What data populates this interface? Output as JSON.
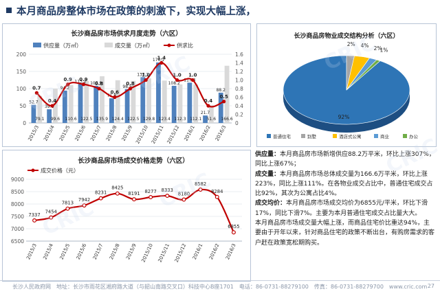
{
  "header": {
    "title": "本月商品房整体市场在政策的刺激下，实现大幅上涨，"
  },
  "colors": {
    "navy": "#1f3a63",
    "supply": "#4f81bd",
    "sales": "#d9d9d9",
    "ratio": "#c00000",
    "price": "#c00000",
    "pie_main": "#2e75b6"
  },
  "analysis": {
    "p1_k": "供应量：",
    "p1": "本月商品房市场新增供应88.2万平米，环比上涨307%，同比上涨67%；",
    "p2_k": "成交量：",
    "p2": "本月商品房市场总体成交量为166.6万平米，环比上涨223%，同比上涨111%。在各物业成交占比中，普通住宅成交占比92%，其次为公寓占比4%。",
    "p3_k": "成交均价：",
    "p3": "本月商品房市场成交均价为6855元/平米，环比下滑17%，同比下滑7%。主要为本月普通住宅成交占比量大大。",
    "p4": "本月商品房市场成交量大幅上涨，而商品住宅价比重达94%，主要由于开年以来，针对商品住宅的政策不断出台，有购房需求的客户赶在政策宽松期购买。"
  },
  "footer": {
    "text": "地址：长沙市雨花区湘府路大道（与韶山南路交叉口）科技中心B座1701　电话：86-0731-88279100　传真：86-0731-88279700　www.cric.com",
    "left_mark": "长沙人民政府网",
    "page": "27"
  },
  "watermarks": [
    "CRIC",
    "CRIC",
    "CRIC",
    "CRIC",
    "CRIC",
    "CRIC"
  ],
  "chart_data": [
    {
      "type": "bar",
      "title": "长沙商品房市场供求月度走势（六区）",
      "categories": [
        "2015/3",
        "2015/4",
        "2015/5",
        "2015/6",
        "2015/7",
        "2015/8",
        "2015/9",
        "2015/10",
        "2015/11",
        "2015/12",
        "2016/1",
        "2016/2",
        "2016/3"
      ],
      "series": [
        {
          "name": "供应量（万㎡）",
          "kind": "bar",
          "axis": "left",
          "values": [
            52.7,
            39.8,
            94.2,
            113.2,
            107.9,
            71.8,
            98.5,
            133.3,
            176.1,
            108.2,
            117.4,
            21.7,
            88.2
          ]
        },
        {
          "name": "成交量（万㎡）",
          "kind": "bar",
          "axis": "left",
          "values": [
            79.1,
            99.6,
            110.6,
            122.5,
            135.9,
            124.4,
            122.5,
            129.8,
            123.4,
            112.3,
            112.1,
            51.6,
            166.6
          ]
        },
        {
          "name": "供求比",
          "kind": "line",
          "axis": "right",
          "values": [
            0.7,
            0.4,
            0.9,
            0.9,
            0.8,
            0.6,
            0.8,
            1.0,
            1.4,
            1.0,
            1.0,
            0.4,
            0.5
          ]
        }
      ],
      "ylim_left": [
        0,
        200
      ],
      "yticks_left": [
        0,
        50,
        100,
        150,
        200
      ],
      "ylim_right": [
        0,
        1.6
      ],
      "yticks_right": [
        "0",
        "0.2",
        "0.4",
        "0.6",
        "0.8",
        "1.0",
        "1.2",
        "1.4",
        "1.6"
      ]
    },
    {
      "type": "pie",
      "title": "长沙商品房物业成交结构分析（六区）",
      "labels": [
        "普通住宅",
        "别墅",
        "酒店式公寓",
        "商业",
        "办公"
      ],
      "values": [
        92,
        2,
        4,
        2,
        1
      ],
      "value_labels": [
        "92%",
        "2%",
        "4%",
        "2%",
        "1%"
      ],
      "colors": [
        "#2e75b6",
        "#a5a5a5",
        "#ffc000",
        "#5b9bd5",
        "#70ad47"
      ]
    },
    {
      "type": "line",
      "title": "长沙商品房市场成交价格走势（六区）",
      "categories": [
        "2015/3",
        "2015/4",
        "2015/5",
        "2015/6",
        "2015/7",
        "2015/8",
        "2015/9",
        "2015/10",
        "2015/11",
        "2015/12",
        "2016/1",
        "2016/2",
        "2016/3"
      ],
      "series": [
        {
          "name": "成交价格（元）",
          "values": [
            7337,
            7454,
            7813,
            7942,
            8231,
            8425,
            8191,
            8277,
            8333,
            8180,
            8582,
            8284,
            6855
          ]
        }
      ],
      "ylim": [
        6500,
        9000
      ],
      "yticks": [
        "6500",
        "7000",
        "7500",
        "8000",
        "8500",
        "9000"
      ]
    }
  ]
}
